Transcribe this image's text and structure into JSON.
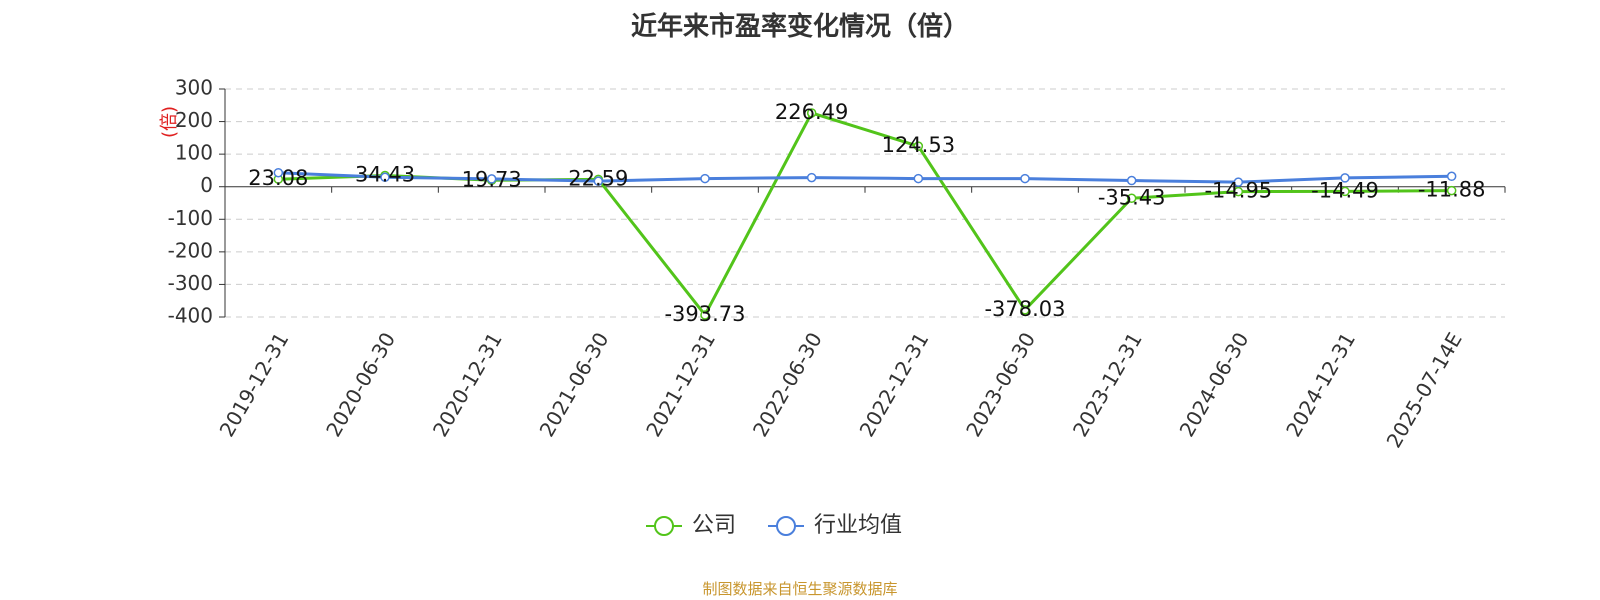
{
  "chart_data": {
    "type": "line",
    "title": "近年来市盈率变化情况（倍）",
    "xlabel": "",
    "ylabel": "(倍)",
    "ylim": [
      -400,
      300
    ],
    "yticks": [
      300,
      200,
      100,
      0,
      -100,
      -200,
      -300,
      -400
    ],
    "grid": true,
    "legend_position": "bottom-center",
    "categories": [
      "2019-12-31",
      "2020-06-30",
      "2020-12-31",
      "2021-06-30",
      "2021-12-31",
      "2022-06-30",
      "2022-12-31",
      "2023-06-30",
      "2023-12-31",
      "2024-06-30",
      "2024-12-31",
      "2025-07-14E"
    ],
    "series": [
      {
        "name": "公司",
        "color": "#52c41a",
        "values": [
          23.08,
          34.43,
          19.73,
          22.59,
          -393.73,
          226.49,
          124.53,
          -378.03,
          -35.43,
          -14.95,
          -14.49,
          -11.88
        ],
        "labels": [
          "23.08",
          "34.43",
          "19.73",
          "22.59",
          "-393.73",
          "226.49",
          "124.53",
          "-378.03",
          "-35.43",
          "-14.95",
          "-14.49",
          "-11.88"
        ]
      },
      {
        "name": "行业均值",
        "color": "#4a7fdc",
        "values": [
          43,
          29,
          24,
          17,
          25,
          28,
          25,
          25,
          19,
          14,
          27,
          32
        ]
      }
    ]
  },
  "source": "制图数据来自恒生聚源数据库"
}
